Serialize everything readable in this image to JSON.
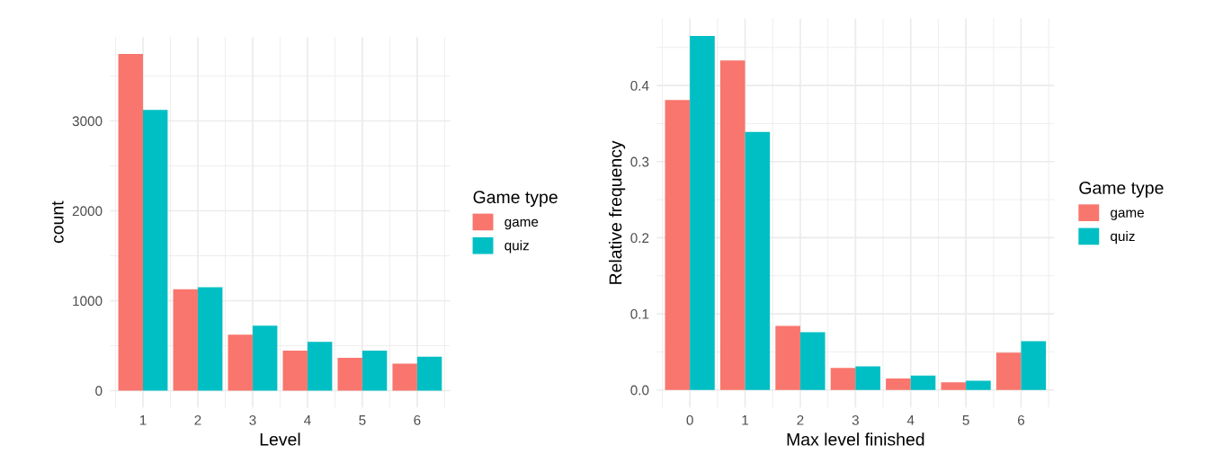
{
  "chart_data": [
    {
      "type": "bar",
      "categories": [
        "1",
        "2",
        "3",
        "4",
        "5",
        "6"
      ],
      "xlabel": "Level",
      "ylabel": "count",
      "legend_title": "Game type",
      "legend": "right",
      "grid": true,
      "ylim": [
        -187,
        3933
      ],
      "yticks": [
        0,
        1000,
        2000,
        3000
      ],
      "series": [
        {
          "name": "game",
          "color": "#f8766d",
          "values": [
            3746,
            1127,
            623,
            444,
            366,
            299
          ]
        },
        {
          "name": "quiz",
          "color": "#00bfc4",
          "values": [
            3123,
            1151,
            722,
            542,
            444,
            377
          ]
        }
      ]
    },
    {
      "type": "bar",
      "categories": [
        "0",
        "1",
        "2",
        "3",
        "4",
        "5",
        "6"
      ],
      "xlabel": "Max level finished",
      "ylabel": "Relative frequency",
      "legend_title": "Game type",
      "legend": "right",
      "grid": true,
      "ylim": [
        -0.023,
        0.488
      ],
      "yticks": [
        {
          "value": 0,
          "label": "0.0"
        },
        0.1,
        0.2,
        0.3,
        0.4
      ],
      "series": [
        {
          "name": "game",
          "color": "#f8766d",
          "values": [
            0.381,
            0.433,
            0.084,
            0.029,
            0.015,
            0.01,
            0.049
          ]
        },
        {
          "name": "quiz",
          "color": "#00bfc4",
          "values": [
            0.465,
            0.339,
            0.076,
            0.031,
            0.019,
            0.012,
            0.064
          ]
        }
      ]
    }
  ]
}
